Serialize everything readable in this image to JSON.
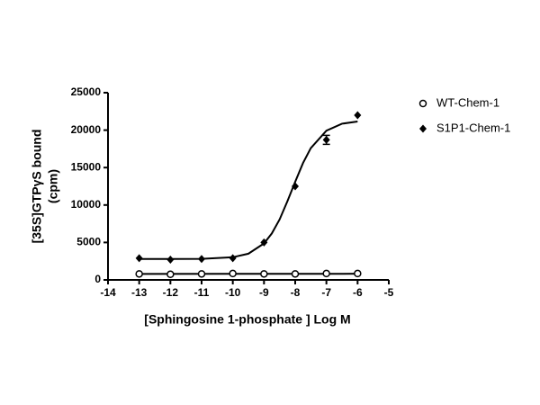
{
  "chart_data": {
    "type": "dose-response",
    "x_label": "[Sphingosine 1-phosphate ] Log M",
    "y_label": [
      "[35S]GTPγS bound",
      "(cpm)"
    ],
    "xlim": [
      -14,
      -5
    ],
    "xticks": [
      -14,
      -13,
      -12,
      -11,
      -10,
      -9,
      -8,
      -7,
      -6,
      -5
    ],
    "ylim": [
      0,
      25000
    ],
    "yticks": [
      0,
      5000,
      10000,
      15000,
      20000,
      25000
    ],
    "grid": false,
    "legend": "top-right",
    "x": [
      -13,
      -12,
      -11,
      -10,
      -9,
      -8,
      -7,
      -6
    ],
    "series": [
      {
        "name": "WT-Chem-1",
        "marker": "open-circle",
        "color": "#000000",
        "values": [
          800,
          750,
          800,
          850,
          800,
          800,
          850,
          850
        ],
        "fit": {
          "x": [
            -13,
            -6
          ],
          "values": [
            800,
            820
          ]
        }
      },
      {
        "name": "S1P1-Chem-1",
        "marker": "diamond",
        "color": "#000000",
        "values": [
          2900,
          2700,
          2800,
          2900,
          5000,
          12500,
          18700,
          22000
        ],
        "errors": [
          null,
          null,
          null,
          null,
          null,
          null,
          600,
          null
        ],
        "fit": {
          "x": [
            -13,
            -12,
            -11,
            -10,
            -9.5,
            -9,
            -8.75,
            -8.5,
            -8.25,
            -8,
            -7.75,
            -7.5,
            -7,
            -6.5,
            -6
          ],
          "values": [
            2800,
            2800,
            2810,
            3030,
            3500,
            4870,
            6200,
            8070,
            10500,
            13100,
            15600,
            17600,
            19930,
            20860,
            21150
          ]
        }
      }
    ]
  }
}
